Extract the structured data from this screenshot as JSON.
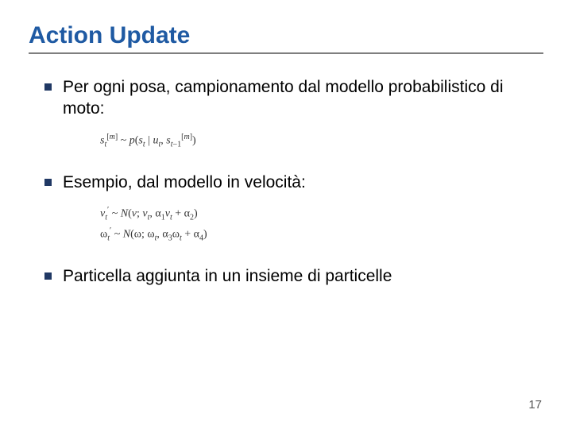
{
  "title": "Action Update",
  "title_color": "#1f5aa3",
  "underline_color": "#7f7f7f",
  "bullet_color": "#203864",
  "text_color": "#000000",
  "formula_color": "#333333",
  "page_number_color": "#5a5a5a",
  "bullets": [
    "Per ogni posa, campionamento dal modello probabilistico di moto:",
    "Esempio, dal modello in velocità:",
    "Particella aggiunta in un insieme di particelle"
  ],
  "page_number": "17"
}
